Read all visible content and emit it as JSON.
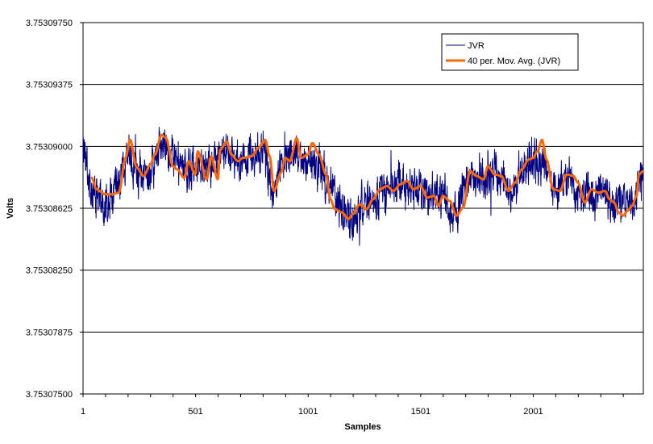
{
  "chart_data": {
    "type": "line",
    "title": "",
    "xlabel": "Samples",
    "ylabel": "Volts",
    "xlim": [
      1,
      2490
    ],
    "ylim": [
      3.753075,
      3.7530975
    ],
    "y_ticks": [
      "3.75307500",
      "3.75307875",
      "3.75308250",
      "3.75308625",
      "3.75309000",
      "3.75309375",
      "3.75309750"
    ],
    "x_ticks": [
      "1",
      "501",
      "1001",
      "1501",
      "2001"
    ],
    "grid": "horizontal major gridlines",
    "legend_position": "top-right",
    "series": [
      {
        "name": "JVR",
        "color": "#000080",
        "style": "thin noisy line, one point per sample",
        "x": [
          1,
          30,
          60,
          100,
          150,
          200,
          250,
          300,
          350,
          400,
          450,
          500,
          550,
          600,
          650,
          700,
          750,
          800,
          850,
          900,
          950,
          1000,
          1050,
          1100,
          1150,
          1200,
          1250,
          1300,
          1350,
          1400,
          1450,
          1500,
          1550,
          1600,
          1650,
          1700,
          1750,
          1800,
          1850,
          1900,
          1950,
          2000,
          2050,
          2100,
          2150,
          2200,
          2250,
          2300,
          2350,
          2400,
          2450,
          2490
        ],
        "values": [
          3.7530902,
          3.7530876,
          3.7530868,
          3.7530865,
          3.7530878,
          3.7530896,
          3.7530882,
          3.7530885,
          3.7530902,
          3.7530893,
          3.7530885,
          3.753089,
          3.7530885,
          3.7530895,
          3.7530897,
          3.753089,
          3.7530895,
          3.7530897,
          3.7530875,
          3.7530893,
          3.7530898,
          3.7530888,
          3.7530891,
          3.7530874,
          3.7530862,
          3.7530855,
          3.7530864,
          3.753087,
          3.7530874,
          3.7530879,
          3.7530875,
          3.7530872,
          3.7530868,
          3.7530869,
          3.7530858,
          3.7530875,
          3.7530882,
          3.7530881,
          3.7530884,
          3.7530873,
          3.7530885,
          3.7530892,
          3.7530883,
          3.7530873,
          3.7530881,
          3.7530871,
          3.7530868,
          3.7530875,
          3.7530866,
          3.7530864,
          3.7530866,
          3.7530882
        ]
      },
      {
        "name": "40 per. Mov. Avg. (JVR)",
        "color": "#FF6600",
        "style": "thick smooth line",
        "x": [
          40,
          60,
          100,
          130,
          160,
          190,
          210,
          240,
          270,
          300,
          320,
          350,
          370,
          400,
          420,
          450,
          470,
          500,
          510,
          550,
          570,
          600,
          610,
          640,
          660,
          690,
          710,
          750,
          780,
          810,
          830,
          850,
          880,
          900,
          920,
          950,
          970,
          1000,
          1020,
          1050,
          1080,
          1100,
          1120,
          1150,
          1180,
          1200,
          1230,
          1260,
          1290,
          1320,
          1350,
          1380,
          1410,
          1440,
          1470,
          1500,
          1530,
          1560,
          1580,
          1600,
          1630,
          1660,
          1690,
          1720,
          1750,
          1780,
          1800,
          1830,
          1860,
          1890,
          1920,
          1950,
          1980,
          2000,
          2020,
          2040,
          2060,
          2090,
          2120,
          2150,
          2180,
          2200,
          2230,
          2260,
          2290,
          2320,
          2340,
          2360,
          2380,
          2400,
          2420,
          2440,
          2460,
          2470,
          2490
        ],
        "values": [
          3.7530881,
          3.7530874,
          3.7530871,
          3.7530871,
          3.7530872,
          3.7530893,
          3.7530904,
          3.7530887,
          3.7530882,
          3.7530889,
          3.7530895,
          3.7530907,
          3.7530905,
          3.7530888,
          3.7530886,
          3.7530881,
          3.7530891,
          3.7530883,
          3.7530897,
          3.753088,
          3.7530894,
          3.753088,
          3.7530898,
          3.7530903,
          3.7530895,
          3.7530891,
          3.7530893,
          3.7530894,
          3.7530899,
          3.7530904,
          3.7530894,
          3.7530873,
          3.7530884,
          3.7530893,
          3.7530891,
          3.7530905,
          3.7530893,
          3.7530895,
          3.7530902,
          3.7530895,
          3.7530883,
          3.7530868,
          3.7530862,
          3.753086,
          3.7530856,
          3.7530859,
          3.7530865,
          3.7530862,
          3.7530868,
          3.7530874,
          3.7530876,
          3.7530873,
          3.7530877,
          3.7530879,
          3.7530874,
          3.7530876,
          3.7530869,
          3.753087,
          3.7530864,
          3.753087,
          3.7530867,
          3.7530858,
          3.7530863,
          3.7530885,
          3.7530882,
          3.753088,
          3.7530888,
          3.7530883,
          3.7530882,
          3.7530873,
          3.7530878,
          3.7530886,
          3.7530892,
          3.7530893,
          3.7530897,
          3.7530904,
          3.7530892,
          3.7530874,
          3.7530873,
          3.7530883,
          3.7530882,
          3.7530878,
          3.7530866,
          3.7530874,
          3.7530872,
          3.7530873,
          3.7530868,
          3.7530866,
          3.753086,
          3.7530858,
          3.7530861,
          3.7530864,
          3.753087,
          3.7530883,
          3.7530885
        ]
      }
    ]
  }
}
